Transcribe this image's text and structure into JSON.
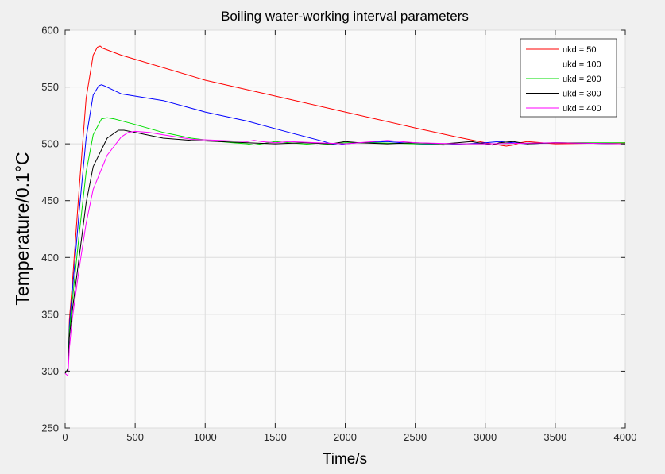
{
  "chart_data": {
    "type": "line",
    "title": "Boiling water-working interval parameters",
    "xlabel": "Time/s",
    "ylabel": "Temperature/0.1°C",
    "xlim": [
      0,
      4000
    ],
    "ylim": [
      250,
      600
    ],
    "xticks": [
      0,
      500,
      1000,
      1500,
      2000,
      2500,
      3000,
      3500,
      4000
    ],
    "yticks": [
      250,
      300,
      350,
      400,
      450,
      500,
      550,
      600
    ],
    "grid": true,
    "legend_position": "top-right",
    "series": [
      {
        "name": "ukd = 50",
        "color": "#ff0000",
        "x": [
          0,
          20,
          30,
          50,
          100,
          150,
          200,
          230,
          250,
          270,
          400,
          1000,
          1500,
          2000,
          2500,
          2800,
          3000,
          3050,
          3100,
          3150,
          3200,
          3250,
          3300,
          3500,
          4000
        ],
        "y": [
          298,
          302,
          345,
          375,
          460,
          540,
          578,
          585,
          586,
          584,
          578,
          556,
          542,
          528,
          514,
          506,
          501,
          500,
          499,
          498,
          499,
          501,
          502,
          500,
          501
        ]
      },
      {
        "name": "ukd = 100",
        "color": "#0000ff",
        "x": [
          0,
          20,
          30,
          50,
          100,
          150,
          200,
          240,
          260,
          280,
          400,
          700,
          1000,
          1300,
          1600,
          1850,
          1900,
          1950,
          2000,
          2100,
          2300,
          2500,
          2700,
          3000,
          3100,
          3300,
          3500,
          4000
        ],
        "y": [
          298,
          302,
          340,
          368,
          440,
          505,
          543,
          551,
          552,
          551,
          544,
          538,
          528,
          520,
          510,
          502,
          500,
          499,
          500,
          501,
          502,
          500,
          499,
          501,
          502,
          500,
          501,
          500
        ]
      },
      {
        "name": "ukd = 200",
        "color": "#00dd00",
        "x": [
          0,
          20,
          30,
          50,
          100,
          150,
          200,
          260,
          300,
          350,
          500,
          700,
          900,
          1100,
          1200,
          1300,
          1350,
          1400,
          1500,
          1600,
          1700,
          1800,
          1900,
          2000,
          2200,
          2500,
          3000,
          3500,
          4000
        ],
        "y": [
          298,
          302,
          335,
          360,
          420,
          475,
          508,
          522,
          523,
          522,
          517,
          510,
          505,
          502,
          501,
          500,
          499,
          500,
          502,
          501,
          500,
          499,
          500,
          501,
          501,
          500,
          500,
          501,
          501
        ]
      },
      {
        "name": "ukd = 300",
        "color": "#000000",
        "x": [
          0,
          20,
          30,
          50,
          100,
          150,
          200,
          300,
          380,
          420,
          500,
          700,
          900,
          1100,
          1300,
          1500,
          1700,
          1900,
          2000,
          2100,
          2300,
          2500,
          2700,
          2800,
          2900,
          3000,
          3050,
          3100,
          3200,
          3300,
          3500,
          4000
        ],
        "y": [
          298,
          302,
          330,
          352,
          400,
          448,
          480,
          505,
          512,
          512,
          510,
          505,
          503,
          502,
          501,
          500,
          501,
          500,
          502,
          501,
          500,
          501,
          500,
          501,
          502,
          500,
          499,
          501,
          502,
          500,
          501,
          500
        ]
      },
      {
        "name": "ukd = 400",
        "color": "#ff00ff",
        "x": [
          0,
          20,
          30,
          50,
          100,
          150,
          200,
          300,
          400,
          450,
          500,
          600,
          700,
          900,
          1100,
          1300,
          1350,
          1400,
          1500,
          1600,
          1800,
          2000,
          2200,
          2300,
          2500,
          2800,
          3000,
          3500,
          4000
        ],
        "y": [
          298,
          296,
          320,
          345,
          390,
          430,
          460,
          490,
          506,
          510,
          511,
          510,
          508,
          504,
          503,
          502,
          503,
          502,
          501,
          502,
          501,
          500,
          502,
          503,
          501,
          500,
          500,
          501,
          500
        ]
      }
    ]
  }
}
